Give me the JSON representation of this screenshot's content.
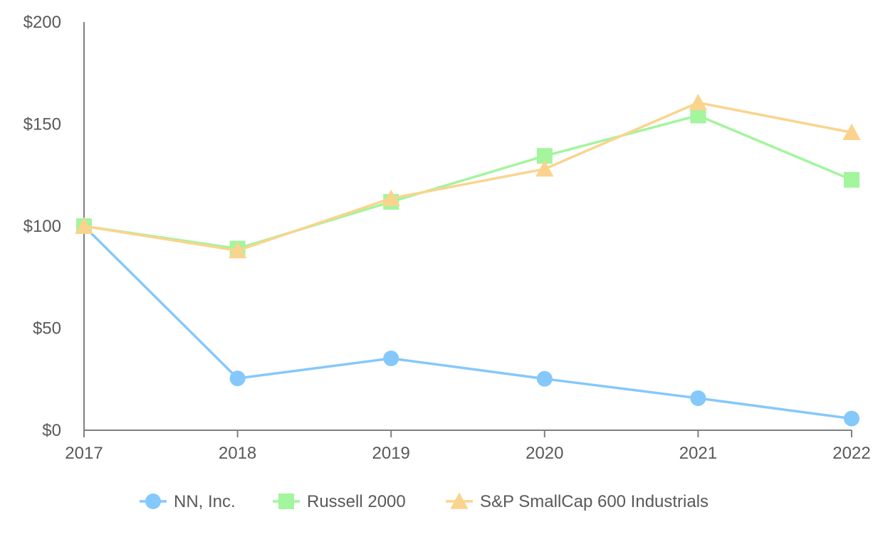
{
  "chart_data": {
    "type": "line",
    "title": "",
    "xlabel": "",
    "ylabel": "",
    "categories": [
      "2017",
      "2018",
      "2019",
      "2020",
      "2021",
      "2022"
    ],
    "ylim": [
      0,
      200
    ],
    "y_ticks": [
      0,
      50,
      100,
      150,
      200
    ],
    "y_tick_labels": [
      "$0",
      "$50",
      "$100",
      "$150",
      "$200"
    ],
    "grid": false,
    "legend_position": "bottom",
    "series": [
      {
        "name": "NN, Inc.",
        "marker": "circle",
        "color": "#85c8fb",
        "values": [
          100,
          25.4,
          35.2,
          25.2,
          15.7,
          5.7
        ]
      },
      {
        "name": "Russell 2000",
        "marker": "square",
        "color": "#a3f59e",
        "values": [
          100,
          89.0,
          111.9,
          134.4,
          154.2,
          122.7
        ]
      },
      {
        "name": "S&P SmallCap 600 Industrials",
        "marker": "triangle",
        "color": "#fad48e",
        "values": [
          100,
          88.0,
          113.6,
          128.0,
          160.5,
          145.9
        ]
      }
    ],
    "axis_color": "#7f7f7f",
    "text_color": "#595959"
  }
}
